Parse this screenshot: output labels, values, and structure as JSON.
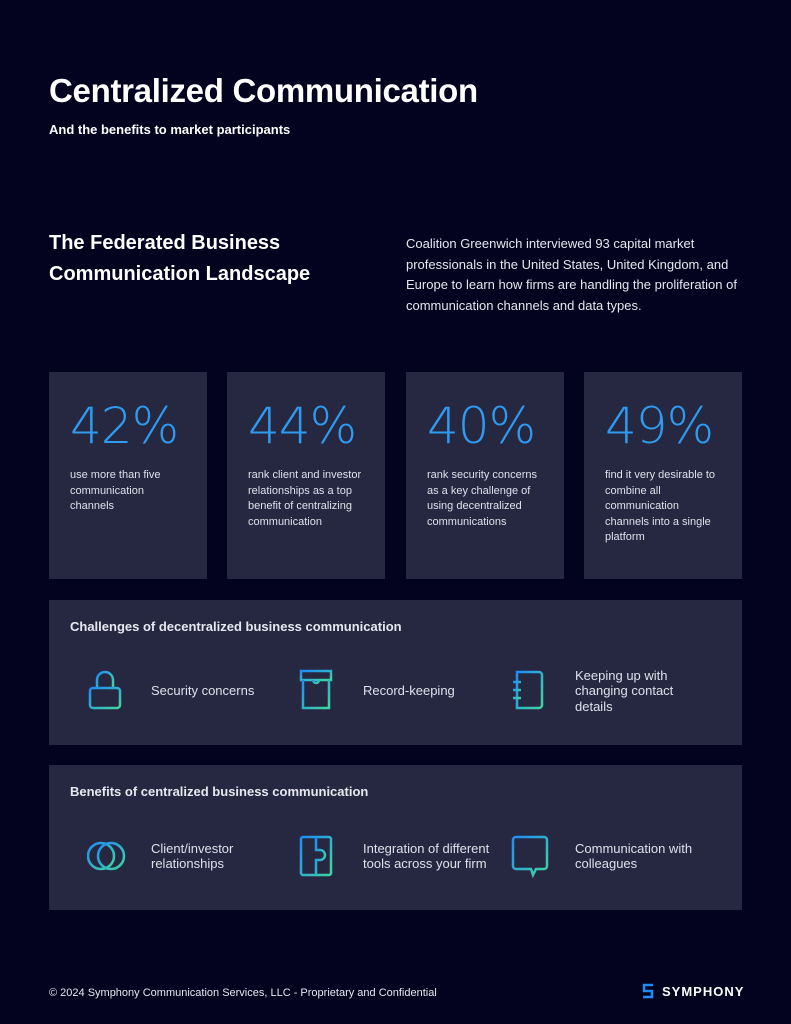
{
  "header": {
    "title": "Centralized Communication",
    "subtitle": "And the benefits to market participants"
  },
  "section": {
    "title": "The Federated Business Communication Landscape",
    "intro": "Coalition Greenwich interviewed 93 capital market professionals in the United States, United Kingdom, and Europe to learn how firms are handling the proliferation of communication channels and data types."
  },
  "stats": [
    {
      "value": "42%",
      "desc": "use more than five communication channels"
    },
    {
      "value": "44%",
      "desc": "rank client and investor relationships as a top benefit of centralizing communication"
    },
    {
      "value": "40%",
      "desc": "rank security concerns as a key challenge of using decentralized communications"
    },
    {
      "value": "49%",
      "desc": "find it very desirable to combine all communication channels into a single platform"
    }
  ],
  "challenges": {
    "title": "Challenges of decentralized business communication",
    "items": [
      {
        "icon": "lock-icon",
        "label": "Security concerns"
      },
      {
        "icon": "archive-box-icon",
        "label": "Record-keeping"
      },
      {
        "icon": "notebook-icon",
        "label": "Keeping up with changing contact details"
      }
    ]
  },
  "benefits": {
    "title": "Benefits of centralized business communication",
    "items": [
      {
        "icon": "overlapping-circles-icon",
        "label": "Client/investor relationships"
      },
      {
        "icon": "puzzle-icon",
        "label": "Integration of different tools across your firm"
      },
      {
        "icon": "chat-bubble-icon",
        "label": "Communication with colleagues"
      }
    ]
  },
  "footer": {
    "copyright": "© 2024 Symphony Communication Services, LLC - Proprietary and Confidential",
    "logo": "SYMPHONY"
  },
  "colors": {
    "background": "#03031f",
    "card": "#262842",
    "accent": "#2e9bf0",
    "gradient_end": "#3fd6a0"
  }
}
